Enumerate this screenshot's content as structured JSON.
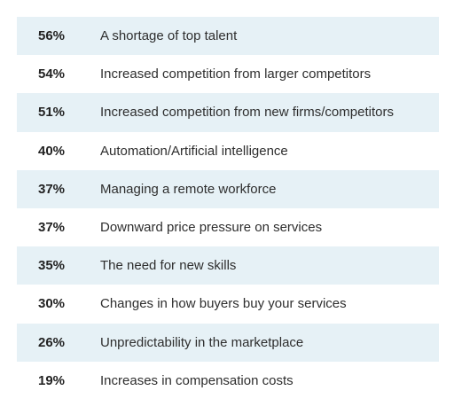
{
  "chart_data": {
    "type": "table",
    "rows": [
      {
        "percent": "56%",
        "label": "A shortage of top talent",
        "value": 56
      },
      {
        "percent": "54%",
        "label": "Increased competition from larger competitors",
        "value": 54
      },
      {
        "percent": "51%",
        "label": "Increased competition from new firms/competitors",
        "value": 51
      },
      {
        "percent": "40%",
        "label": "Automation/Artificial intelligence",
        "value": 40
      },
      {
        "percent": "37%",
        "label": "Managing a remote workforce",
        "value": 37
      },
      {
        "percent": "37%",
        "label": "Downward price pressure on services",
        "value": 37
      },
      {
        "percent": "35%",
        "label": "The need for new skills",
        "value": 35
      },
      {
        "percent": "30%",
        "label": "Changes in how buyers buy your services",
        "value": 30
      },
      {
        "percent": "26%",
        "label": "Unpredictability in the marketplace",
        "value": 26
      },
      {
        "percent": "19%",
        "label": "Increases in compensation costs",
        "value": 19
      }
    ]
  },
  "colors": {
    "row_shade": "#e6f1f6",
    "text": "#2a2a2a"
  }
}
